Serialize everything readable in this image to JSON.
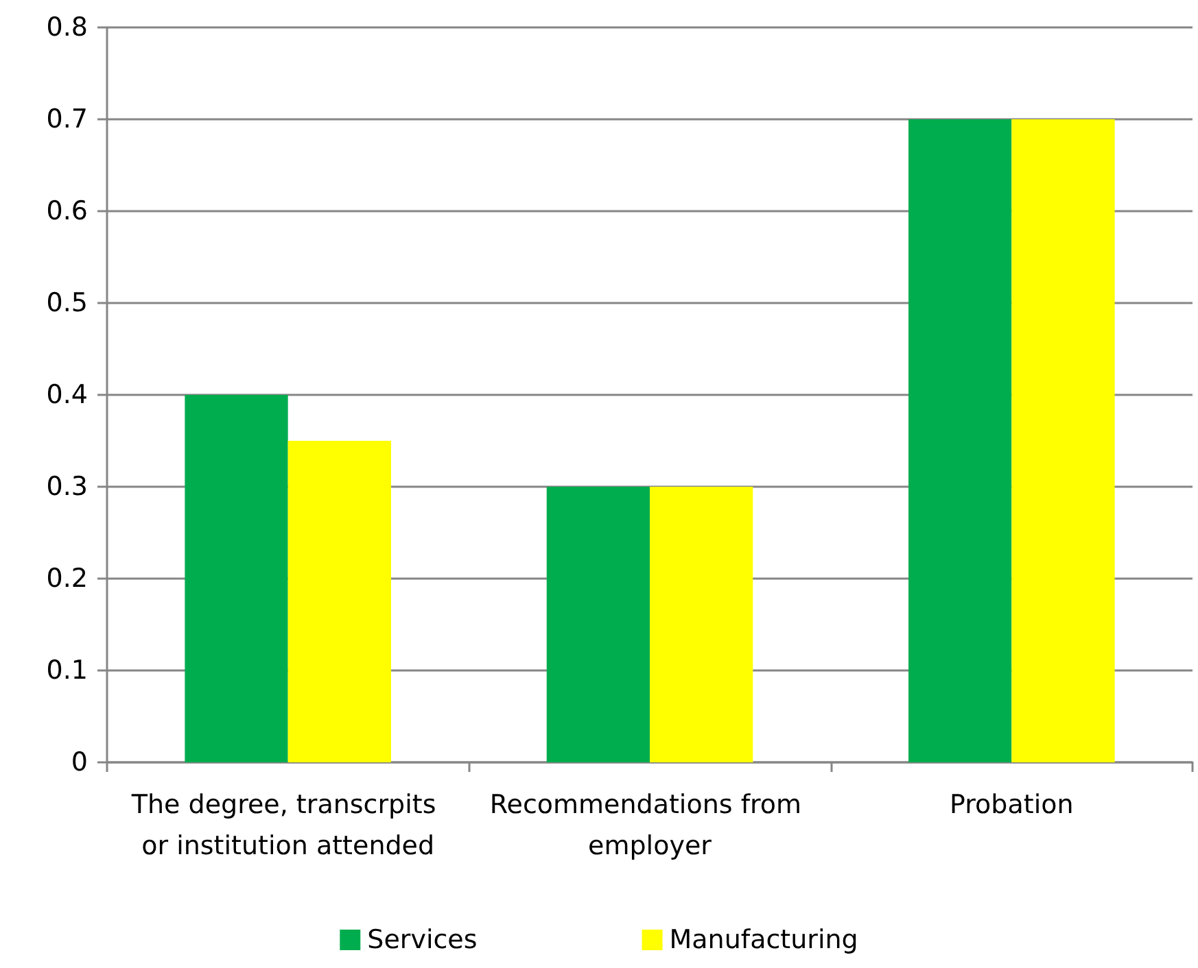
{
  "chart_data": {
    "type": "bar",
    "categories": [
      "The degree, transcrpits or institution attended",
      "Recommendations from employer",
      "Probation"
    ],
    "series": [
      {
        "name": "Services",
        "color": "#00ad4e",
        "values": [
          0.4,
          0.3,
          0.7
        ]
      },
      {
        "name": "Manufacturing",
        "color": "#ffff00",
        "values": [
          0.35,
          0.3,
          0.7
        ]
      }
    ],
    "ylim": [
      0,
      0.8
    ],
    "yticks": [
      0,
      0.1,
      0.2,
      0.3,
      0.4,
      0.5,
      0.6,
      0.7,
      0.8
    ],
    "grid": "y",
    "legend": "bottom"
  }
}
